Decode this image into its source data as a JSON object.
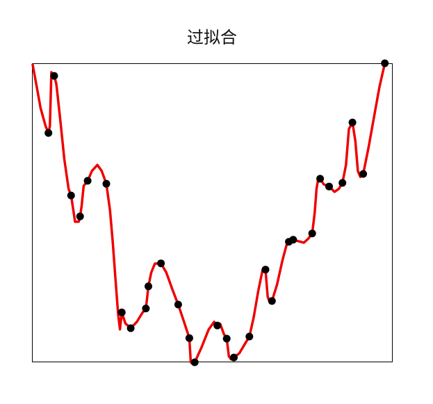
{
  "chart_data": {
    "type": "scatter",
    "title": "过拟合",
    "xlabel": "",
    "ylabel": "",
    "grid": false,
    "xlim": [
      0,
      1
    ],
    "ylim": [
      0,
      1
    ],
    "points": [
      {
        "x": 0.044,
        "y": 0.767
      },
      {
        "x": 0.06,
        "y": 0.958
      },
      {
        "x": 0.107,
        "y": 0.558
      },
      {
        "x": 0.132,
        "y": 0.488
      },
      {
        "x": 0.153,
        "y": 0.607
      },
      {
        "x": 0.205,
        "y": 0.597
      },
      {
        "x": 0.248,
        "y": 0.167
      },
      {
        "x": 0.273,
        "y": 0.114
      },
      {
        "x": 0.315,
        "y": 0.18
      },
      {
        "x": 0.322,
        "y": 0.254
      },
      {
        "x": 0.357,
        "y": 0.331
      },
      {
        "x": 0.405,
        "y": 0.193
      },
      {
        "x": 0.436,
        "y": 0.081
      },
      {
        "x": 0.451,
        "y": 0.0
      },
      {
        "x": 0.514,
        "y": 0.123
      },
      {
        "x": 0.54,
        "y": 0.079
      },
      {
        "x": 0.56,
        "y": 0.016
      },
      {
        "x": 0.603,
        "y": 0.086
      },
      {
        "x": 0.648,
        "y": 0.31
      },
      {
        "x": 0.666,
        "y": 0.205
      },
      {
        "x": 0.713,
        "y": 0.403
      },
      {
        "x": 0.725,
        "y": 0.41
      },
      {
        "x": 0.778,
        "y": 0.431
      },
      {
        "x": 0.8,
        "y": 0.614
      },
      {
        "x": 0.825,
        "y": 0.588
      },
      {
        "x": 0.862,
        "y": 0.6
      },
      {
        "x": 0.89,
        "y": 0.802
      },
      {
        "x": 0.92,
        "y": 0.63
      },
      {
        "x": 0.98,
        "y": 1.0
      }
    ],
    "curve": {
      "color": "#ee0000",
      "points": [
        [
          0.0,
          0.995
        ],
        [
          0.01,
          0.93
        ],
        [
          0.022,
          0.85
        ],
        [
          0.036,
          0.79
        ],
        [
          0.044,
          0.767
        ],
        [
          0.048,
          0.79
        ],
        [
          0.052,
          0.97
        ],
        [
          0.06,
          0.958
        ],
        [
          0.066,
          0.93
        ],
        [
          0.076,
          0.82
        ],
        [
          0.088,
          0.68
        ],
        [
          0.1,
          0.58
        ],
        [
          0.107,
          0.558
        ],
        [
          0.118,
          0.47
        ],
        [
          0.128,
          0.47
        ],
        [
          0.132,
          0.488
        ],
        [
          0.136,
          0.52
        ],
        [
          0.142,
          0.59
        ],
        [
          0.153,
          0.607
        ],
        [
          0.165,
          0.64
        ],
        [
          0.18,
          0.66
        ],
        [
          0.192,
          0.64
        ],
        [
          0.205,
          0.597
        ],
        [
          0.215,
          0.51
        ],
        [
          0.223,
          0.4
        ],
        [
          0.231,
          0.27
        ],
        [
          0.238,
          0.16
        ],
        [
          0.243,
          0.11
        ],
        [
          0.248,
          0.167
        ],
        [
          0.258,
          0.13
        ],
        [
          0.273,
          0.114
        ],
        [
          0.29,
          0.135
        ],
        [
          0.305,
          0.165
        ],
        [
          0.315,
          0.18
        ],
        [
          0.319,
          0.22
        ],
        [
          0.322,
          0.254
        ],
        [
          0.33,
          0.3
        ],
        [
          0.34,
          0.33
        ],
        [
          0.357,
          0.331
        ],
        [
          0.372,
          0.3
        ],
        [
          0.39,
          0.24
        ],
        [
          0.405,
          0.193
        ],
        [
          0.42,
          0.14
        ],
        [
          0.436,
          0.081
        ],
        [
          0.44,
          0.0
        ],
        [
          0.445,
          -0.005
        ],
        [
          0.451,
          0.0
        ],
        [
          0.47,
          0.05
        ],
        [
          0.49,
          0.11
        ],
        [
          0.505,
          0.135
        ],
        [
          0.514,
          0.123
        ],
        [
          0.522,
          0.128
        ],
        [
          0.532,
          0.095
        ],
        [
          0.54,
          0.079
        ],
        [
          0.546,
          0.02
        ],
        [
          0.552,
          0.01
        ],
        [
          0.56,
          0.016
        ],
        [
          0.575,
          0.03
        ],
        [
          0.59,
          0.06
        ],
        [
          0.603,
          0.086
        ],
        [
          0.615,
          0.15
        ],
        [
          0.628,
          0.24
        ],
        [
          0.64,
          0.31
        ],
        [
          0.648,
          0.31
        ],
        [
          0.654,
          0.22
        ],
        [
          0.66,
          0.2
        ],
        [
          0.666,
          0.205
        ],
        [
          0.68,
          0.26
        ],
        [
          0.695,
          0.34
        ],
        [
          0.706,
          0.39
        ],
        [
          0.713,
          0.403
        ],
        [
          0.725,
          0.41
        ],
        [
          0.74,
          0.405
        ],
        [
          0.755,
          0.4
        ],
        [
          0.768,
          0.415
        ],
        [
          0.778,
          0.431
        ],
        [
          0.785,
          0.5
        ],
        [
          0.79,
          0.58
        ],
        [
          0.795,
          0.615
        ],
        [
          0.8,
          0.614
        ],
        [
          0.81,
          0.595
        ],
        [
          0.825,
          0.588
        ],
        [
          0.84,
          0.57
        ],
        [
          0.852,
          0.58
        ],
        [
          0.862,
          0.6
        ],
        [
          0.872,
          0.66
        ],
        [
          0.88,
          0.78
        ],
        [
          0.89,
          0.802
        ],
        [
          0.898,
          0.74
        ],
        [
          0.905,
          0.64
        ],
        [
          0.912,
          0.62
        ],
        [
          0.92,
          0.63
        ],
        [
          0.935,
          0.72
        ],
        [
          0.95,
          0.82
        ],
        [
          0.965,
          0.92
        ],
        [
          0.98,
          1.0
        ]
      ]
    }
  }
}
